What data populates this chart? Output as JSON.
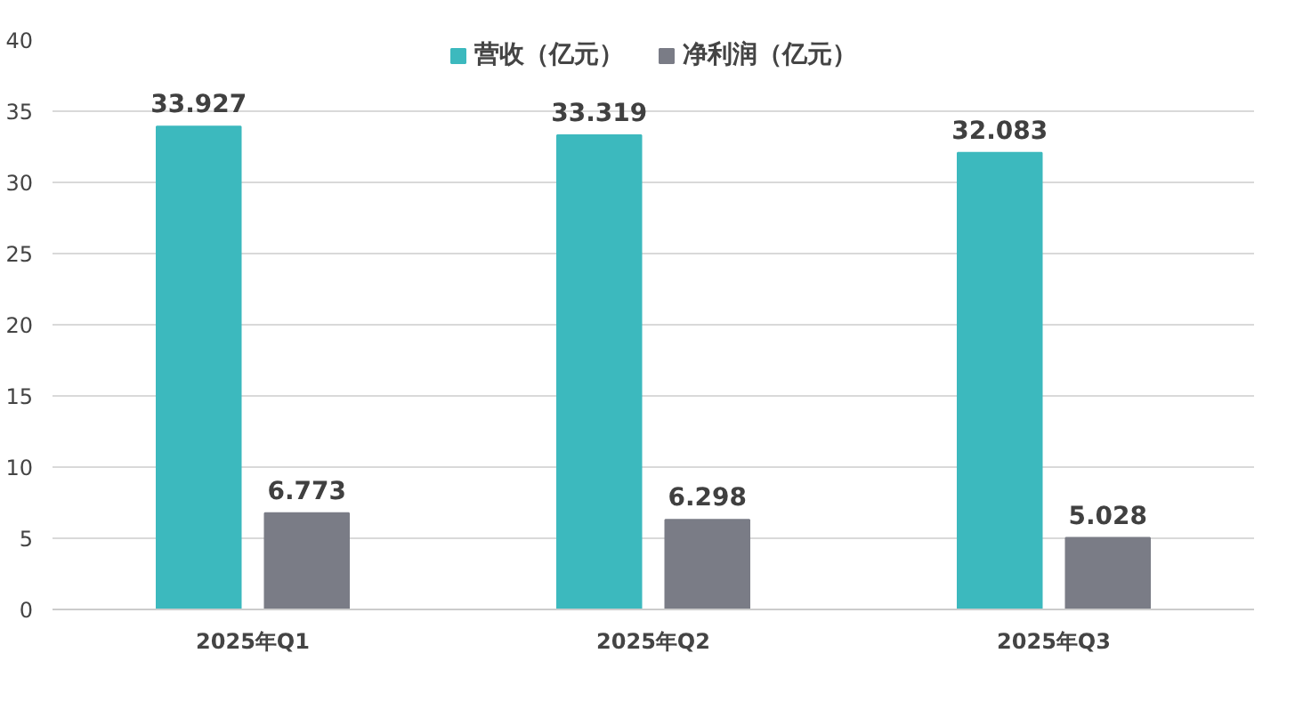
{
  "chart_data": {
    "type": "bar",
    "categories": [
      "2025年Q1",
      "2025年Q2",
      "2025年Q3"
    ],
    "series": [
      {
        "name": "营收（亿元）",
        "color": "#3cb9be",
        "values": [
          33.927,
          33.319,
          32.083
        ]
      },
      {
        "name": "净利润（亿元）",
        "color": "#7a7c86",
        "values": [
          6.773,
          6.298,
          5.028
        ]
      }
    ],
    "ylim": [
      0,
      40
    ],
    "yticks": [
      0,
      5,
      10,
      15,
      20,
      25,
      30,
      35,
      40
    ],
    "grid": "y",
    "legend": "top",
    "data_labels": true
  }
}
